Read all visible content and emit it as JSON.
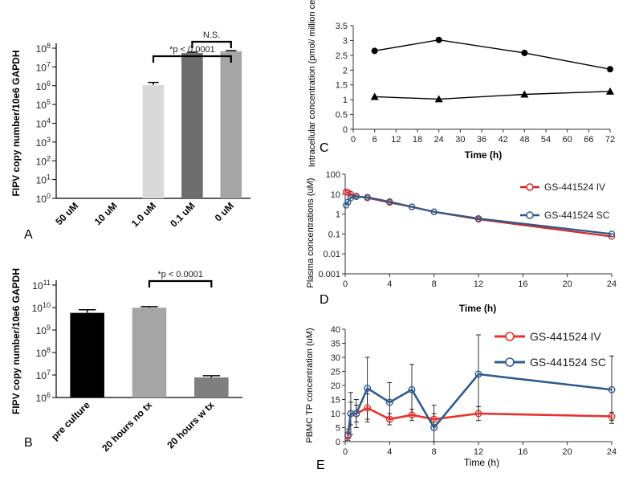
{
  "figure": {
    "panel_letters": [
      "A",
      "B",
      "C",
      "D",
      "E"
    ]
  },
  "chart_data": [
    {
      "panel": "A",
      "type": "bar",
      "ylabel": "FIPV copy number/10e6 GAPDH",
      "xlabel": "",
      "yscale": "log",
      "ylim_exp": [
        0,
        8
      ],
      "ytick_exponents": [
        0,
        1,
        2,
        3,
        4,
        5,
        6,
        7,
        8
      ],
      "categories": [
        "50 uM",
        "10 uM",
        "1.0 uM",
        "0.1 uM",
        "0 uM"
      ],
      "values": [
        null,
        null,
        1100000,
        55000000,
        68000000
      ],
      "error": [
        null,
        null,
        400000,
        6000000,
        6000000
      ],
      "colors": [
        "#d9d9d9",
        "#d9d9d9",
        "#d9d9d9",
        "#6e6e6e",
        "#a5a5a5"
      ],
      "annotations": [
        {
          "text": "*p < 0.0001",
          "from": 2,
          "to": 4
        },
        {
          "text": "N.S.",
          "from": 3,
          "to": 4
        }
      ]
    },
    {
      "panel": "B",
      "type": "bar",
      "ylabel": "FIPV copy number/10e6 GAPDH",
      "xlabel": "",
      "yscale": "log",
      "ylim_exp": [
        6,
        11
      ],
      "ytick_exponents": [
        6,
        7,
        8,
        9,
        10,
        11
      ],
      "categories": [
        "pre culture",
        "20 hours no tx",
        "20 hours w tx"
      ],
      "values": [
        5800000000,
        9800000000,
        7800000
      ],
      "error": [
        2200000000,
        1200000000,
        1500000
      ],
      "colors": [
        "#000000",
        "#a5a5a5",
        "#7f7f7f"
      ],
      "annotations": [
        {
          "text": "*p < 0.0001",
          "from": 1,
          "to": 2
        }
      ]
    },
    {
      "panel": "C",
      "type": "line",
      "ylabel": "Intracellular concentration (pmol/ million cells)",
      "xlabel": "Time (h)",
      "xlim": [
        0,
        72
      ],
      "ylim": [
        0,
        3.5
      ],
      "xticks": [
        0,
        6,
        12,
        18,
        24,
        30,
        36,
        42,
        48,
        54,
        60,
        66,
        72
      ],
      "yticks": [
        0,
        0.5,
        1,
        1.5,
        2,
        2.5,
        3,
        3.5
      ],
      "grid": false,
      "series": [
        {
          "marker": "circle",
          "x": [
            6,
            24,
            48,
            72
          ],
          "y": [
            2.65,
            3.02,
            2.58,
            2.03
          ]
        },
        {
          "marker": "triangle",
          "x": [
            6,
            24,
            48,
            72
          ],
          "y": [
            1.1,
            1.02,
            1.18,
            1.28
          ]
        }
      ]
    },
    {
      "panel": "D",
      "type": "line",
      "ylabel": "Plasma concentrations (uM)",
      "xlabel": "Time (h)",
      "yscale": "log",
      "xlim": [
        0,
        24
      ],
      "xticks": [
        0,
        4,
        8,
        12,
        16,
        20,
        24
      ],
      "ylim_exp": [
        -3,
        2
      ],
      "ytick_labels": [
        "0.001",
        "0.01",
        "0.1",
        "1",
        "10",
        "100"
      ],
      "legend_position": "top-right",
      "series": [
        {
          "name": "GS-441524 IV",
          "color": "#d62728",
          "x": [
            0.08,
            0.25,
            0.5,
            1,
            2,
            4,
            6,
            8,
            12,
            24
          ],
          "y": [
            13,
            12,
            10,
            8,
            6.5,
            3.8,
            2.3,
            1.3,
            0.55,
            0.075
          ]
        },
        {
          "name": "GS-441524 SC",
          "color": "#2c5a8a",
          "x": [
            0.08,
            0.25,
            0.5,
            1,
            2,
            4,
            6,
            8,
            12,
            24
          ],
          "y": [
            2.8,
            4,
            6.5,
            7.5,
            7,
            4.2,
            2.3,
            1.3,
            0.6,
            0.1
          ]
        }
      ]
    },
    {
      "panel": "E",
      "type": "line",
      "ylabel": "PBMC TP concentration (uM)",
      "xlabel": "Time (h)",
      "xlim": [
        0,
        24
      ],
      "ylim": [
        0,
        40
      ],
      "xticks": [
        0,
        4,
        8,
        12,
        16,
        20,
        24
      ],
      "yticks": [
        0,
        5,
        10,
        15,
        20,
        25,
        30,
        35,
        40
      ],
      "legend_position": "top-right",
      "series": [
        {
          "name": "GS-441524 IV",
          "color": "#e8312a",
          "x": [
            0.25,
            0.5,
            1,
            2,
            4,
            6,
            8,
            12,
            24
          ],
          "y": [
            2,
            10,
            10,
            12,
            8,
            9.5,
            8,
            10,
            9
          ],
          "err": [
            1,
            4,
            3,
            5,
            2,
            2,
            2,
            2.5,
            1.5
          ]
        },
        {
          "name": "GS-441524 SC",
          "color": "#2e5d8f",
          "x": [
            0.25,
            0.5,
            1,
            2,
            4,
            6,
            8,
            12,
            24
          ],
          "y": [
            2.5,
            10,
            10,
            19,
            14,
            18.5,
            5,
            24,
            18.5
          ],
          "err": [
            2,
            7.5,
            5,
            11,
            7,
            9,
            8,
            14,
            12
          ]
        }
      ]
    }
  ]
}
